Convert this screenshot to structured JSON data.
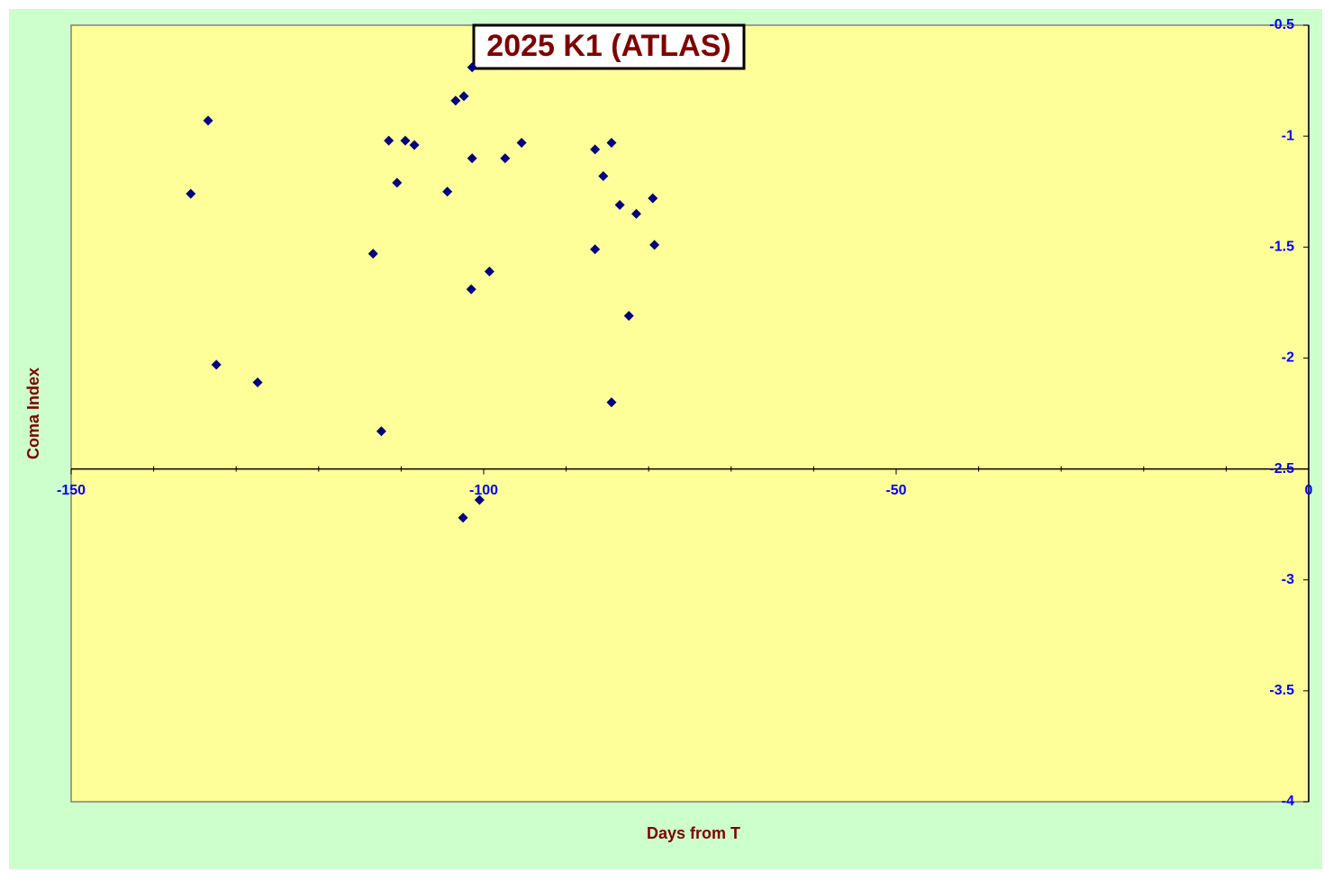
{
  "chart_data": {
    "type": "scatter",
    "title": "2025 K1 (ATLAS)",
    "x_label": "Days from T",
    "y_label": "Coma Index",
    "x": [
      -135.5,
      -133.4,
      -132.4,
      -127.4,
      -113.4,
      -112.4,
      -111.5,
      -110.5,
      -109.5,
      -108.4,
      -104.4,
      -103.4,
      -102.4,
      -101.4,
      -101.4,
      -101.5,
      -102.5,
      -100.5,
      -99.3,
      -97.4,
      -95.4,
      -86.5,
      -86.5,
      -85.5,
      -84.5,
      -84.5,
      -83.5,
      -82.4,
      -81.5,
      -79.5,
      -79.3
    ],
    "values": [
      -1.26,
      -0.93,
      -2.03,
      -2.11,
      -1.53,
      -2.33,
      -1.02,
      -1.21,
      -1.02,
      -1.04,
      -1.25,
      -0.84,
      -0.82,
      -0.69,
      -1.1,
      -1.69,
      -2.72,
      -2.64,
      -1.61,
      -1.1,
      -1.03,
      -1.06,
      -1.51,
      -1.18,
      -1.03,
      -2.2,
      -1.31,
      -1.81,
      -1.35,
      -1.28,
      -1.49
    ],
    "color": "#000080",
    "xlim": [
      -150,
      0
    ],
    "ylim": [
      -4,
      -0.5
    ],
    "xticks": [
      -150,
      -100,
      -50,
      0
    ],
    "xminorticks": [
      -140,
      -130,
      -120,
      -110,
      -90,
      -80,
      -70,
      -60,
      -40,
      -30,
      -20,
      -10
    ],
    "yticks": [
      -0.5,
      -1,
      -1.5,
      -2,
      -2.5,
      -3,
      -3.5,
      -4
    ],
    "x_axis_crosses_y": -2.5
  }
}
